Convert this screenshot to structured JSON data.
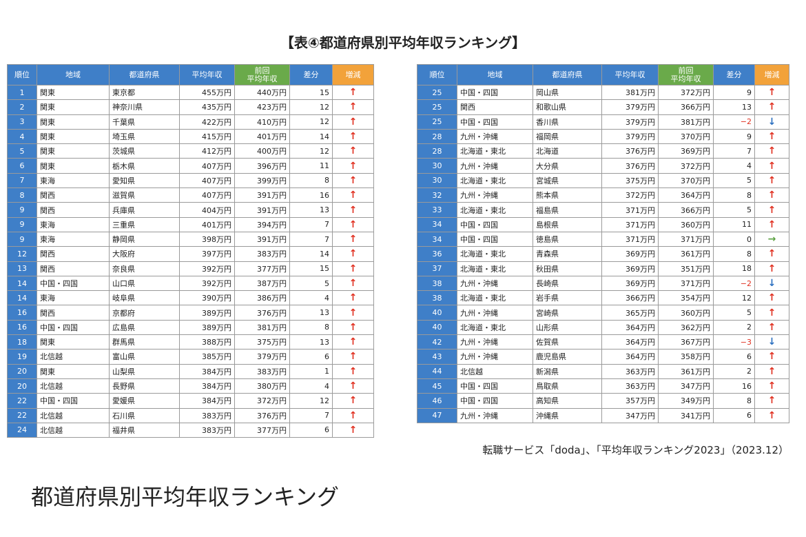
{
  "title": "【表④都道府県別平均年収ランキング】",
  "tables": [
    {
      "header": [
        "順位",
        "地域",
        "都道府県",
        "平均年収",
        "前回\n平均年収",
        "差分",
        "増減"
      ],
      "rows": [
        [
          "1",
          "関東",
          "東京都",
          "455万円",
          "440万円",
          "15",
          "↑"
        ],
        [
          "2",
          "関東",
          "神奈川県",
          "435万円",
          "423万円",
          "12",
          "↑"
        ],
        [
          "3",
          "関東",
          "千葉県",
          "422万円",
          "410万円",
          "12",
          "↑"
        ],
        [
          "4",
          "関東",
          "埼玉県",
          "415万円",
          "401万円",
          "14",
          "↑"
        ],
        [
          "5",
          "関東",
          "茨城県",
          "412万円",
          "400万円",
          "12",
          "↑"
        ],
        [
          "6",
          "関東",
          "栃木県",
          "407万円",
          "396万円",
          "11",
          "↑"
        ],
        [
          "7",
          "東海",
          "愛知県",
          "407万円",
          "399万円",
          "8",
          "↑"
        ],
        [
          "8",
          "関西",
          "滋賀県",
          "407万円",
          "391万円",
          "16",
          "↑"
        ],
        [
          "9",
          "関西",
          "兵庫県",
          "404万円",
          "391万円",
          "13",
          "↑"
        ],
        [
          "9",
          "東海",
          "三重県",
          "401万円",
          "394万円",
          "7",
          "↑"
        ],
        [
          "9",
          "東海",
          "静岡県",
          "398万円",
          "391万円",
          "7",
          "↑"
        ],
        [
          "12",
          "関西",
          "大阪府",
          "397万円",
          "383万円",
          "14",
          "↑"
        ],
        [
          "13",
          "関西",
          "奈良県",
          "392万円",
          "377万円",
          "15",
          "↑"
        ],
        [
          "14",
          "中国・四国",
          "山口県",
          "392万円",
          "387万円",
          "5",
          "↑"
        ],
        [
          "14",
          "東海",
          "岐阜県",
          "390万円",
          "386万円",
          "4",
          "↑"
        ],
        [
          "16",
          "関西",
          "京都府",
          "389万円",
          "376万円",
          "13",
          "↑"
        ],
        [
          "16",
          "中国・四国",
          "広島県",
          "389万円",
          "381万円",
          "8",
          "↑"
        ],
        [
          "18",
          "関東",
          "群馬県",
          "388万円",
          "375万円",
          "13",
          "↑"
        ],
        [
          "19",
          "北信越",
          "富山県",
          "385万円",
          "379万円",
          "6",
          "↑"
        ],
        [
          "20",
          "関東",
          "山梨県",
          "384万円",
          "383万円",
          "1",
          "↑"
        ],
        [
          "20",
          "北信越",
          "長野県",
          "384万円",
          "380万円",
          "4",
          "↑"
        ],
        [
          "22",
          "中国・四国",
          "愛媛県",
          "384万円",
          "372万円",
          "12",
          "↑"
        ],
        [
          "22",
          "北信越",
          "石川県",
          "383万円",
          "376万円",
          "7",
          "↑"
        ],
        [
          "24",
          "北信越",
          "福井県",
          "383万円",
          "377万円",
          "6",
          "↑"
        ]
      ]
    },
    {
      "header": [
        "順位",
        "地域",
        "都道府県",
        "平均年収",
        "前回\n平均年収",
        "差分",
        "増減"
      ],
      "rows": [
        [
          "25",
          "中国・四国",
          "岡山県",
          "381万円",
          "372万円",
          "9",
          "↑"
        ],
        [
          "25",
          "関西",
          "和歌山県",
          "379万円",
          "366万円",
          "13",
          "↑"
        ],
        [
          "25",
          "中国・四国",
          "香川県",
          "379万円",
          "381万円",
          "−2",
          "↓"
        ],
        [
          "28",
          "九州・沖縄",
          "福岡県",
          "379万円",
          "370万円",
          "9",
          "↑"
        ],
        [
          "28",
          "北海道・東北",
          "北海道",
          "376万円",
          "369万円",
          "7",
          "↑"
        ],
        [
          "30",
          "九州・沖縄",
          "大分県",
          "376万円",
          "372万円",
          "4",
          "↑"
        ],
        [
          "30",
          "北海道・東北",
          "宮城県",
          "375万円",
          "370万円",
          "5",
          "↑"
        ],
        [
          "32",
          "九州・沖縄",
          "熊本県",
          "372万円",
          "364万円",
          "8",
          "↑"
        ],
        [
          "33",
          "北海道・東北",
          "福島県",
          "371万円",
          "366万円",
          "5",
          "↑"
        ],
        [
          "34",
          "中国・四国",
          "島根県",
          "371万円",
          "360万円",
          "11",
          "↑"
        ],
        [
          "34",
          "中国・四国",
          "徳島県",
          "371万円",
          "371万円",
          "0",
          "→"
        ],
        [
          "36",
          "北海道・東北",
          "青森県",
          "369万円",
          "361万円",
          "8",
          "↑"
        ],
        [
          "37",
          "北海道・東北",
          "秋田県",
          "369万円",
          "351万円",
          "18",
          "↑"
        ],
        [
          "38",
          "九州・沖縄",
          "長崎県",
          "369万円",
          "371万円",
          "−2",
          "↓"
        ],
        [
          "38",
          "北海道・東北",
          "岩手県",
          "366万円",
          "354万円",
          "12",
          "↑"
        ],
        [
          "40",
          "九州・沖縄",
          "宮崎県",
          "365万円",
          "360万円",
          "5",
          "↑"
        ],
        [
          "40",
          "北海道・東北",
          "山形県",
          "364万円",
          "362万円",
          "2",
          "↑"
        ],
        [
          "42",
          "九州・沖縄",
          "佐賀県",
          "364万円",
          "367万円",
          "−3",
          "↓"
        ],
        [
          "43",
          "九州・沖縄",
          "鹿児島県",
          "364万円",
          "358万円",
          "6",
          "↑"
        ],
        [
          "44",
          "北信越",
          "新潟県",
          "363万円",
          "361万円",
          "2",
          "↑"
        ],
        [
          "45",
          "中国・四国",
          "鳥取県",
          "363万円",
          "347万円",
          "16",
          "↑"
        ],
        [
          "46",
          "中国・四国",
          "高知県",
          "357万円",
          "349万円",
          "8",
          "↑"
        ],
        [
          "47",
          "九州・沖縄",
          "沖縄県",
          "347万円",
          "341万円",
          "6",
          "↑"
        ]
      ]
    }
  ],
  "source": "転職サービス「doda」、「平均年収ランキング2023」（2023.12）",
  "caption": "都道府県別平均年収ランキング"
}
